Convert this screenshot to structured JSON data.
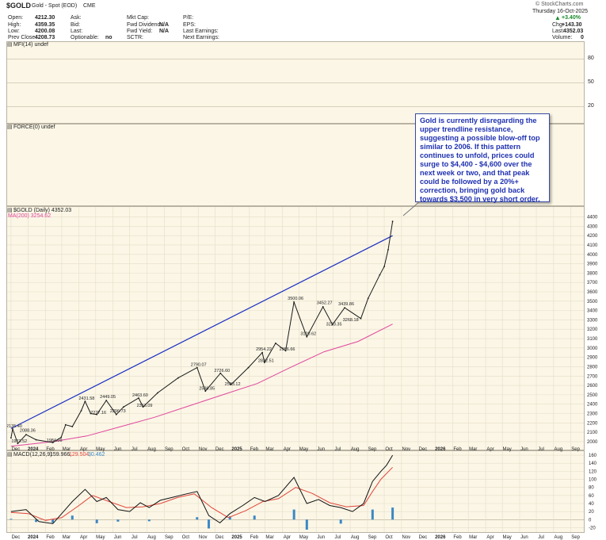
{
  "header": {
    "symbol": "$GOLD",
    "name": "Gold - Spot (EOD)",
    "exchange": "CME",
    "watermark": "© StockCharts.com",
    "date": "Thursday 16-Oct-2025"
  },
  "quote": {
    "open_label": "Open:",
    "open": "4212.30",
    "high_label": "High:",
    "high": "4359.35",
    "low_label": "Low:",
    "low": "4200.08",
    "prev_label": "Prev Close:",
    "prev": "4208.73",
    "ask_label": "Ask:",
    "bid_label": "Bid:",
    "last_label": "Last:",
    "optionable_label": "Optionable:",
    "optionable": "no",
    "mktcap_label": "Mkt Cap:",
    "fwddiv_label": "Fwd Dividend:",
    "fwddiv": "N/A",
    "fwdyield_label": "Fwd Yield:",
    "fwdyield": "N/A",
    "sctr_label": "SCTR:",
    "pe_label": "P/E:",
    "eps_label": "EPS:",
    "lastearn_label": "Last Earnings:",
    "nextearn_label": "Next Earnings:",
    "change_pct": "+3.40%",
    "chg_label": "Chg:",
    "chg": "+143.30",
    "last2_label": "Last:",
    "last2": "4352.03",
    "volume_label": "Volume:",
    "volume": "0"
  },
  "panels": {
    "mfi_legend": "MFI(14) undef",
    "force_legend": "FORCE(0) undef",
    "price_legend": "$GOLD (Daily) 4352.03",
    "ma_legend": "MA(200) 3254.62",
    "macd_legend_name": "MACD(12,26,9)",
    "macd_legend_v1": "159.966,",
    "macd_legend_v2": "129.504,",
    "macd_legend_v3": "30.462"
  },
  "mfi_axis": [
    "80",
    "50",
    "20"
  ],
  "annotation": "Gold is currently disregarding the upper trendline resistance, suggesting a possible blow-off top similar to 2006. If this pattern continues to unfold, prices could surge to $4,400 - $4,600 over the next week or two, and that peak could be followed by a 20%+ correction, bringing gold back towards $3,500 in very short order.",
  "colors": {
    "price": "#1a1a1a",
    "ma": "#e0459d",
    "trendline": "#1c2fc4",
    "macd": "#111111",
    "signal": "#e0453a",
    "histogram": "#3c88c4",
    "panel_bg": "#fbf6e6",
    "annotation_text": "#1f31b0",
    "up": "#1a8a2a"
  },
  "chart_data": [
    {
      "type": "line",
      "title": "$GOLD (Daily) 4352.03",
      "x_labels": [
        "Dec",
        "2024",
        "Feb",
        "Mar",
        "Apr",
        "May",
        "Jun",
        "Jul",
        "Aug",
        "Sep",
        "Oct",
        "Nov",
        "Dec",
        "2025",
        "Feb",
        "Mar",
        "Apr",
        "May",
        "Jun",
        "Jul",
        "Aug",
        "Sep",
        "Oct",
        "Nov",
        "Dec",
        "2026",
        "Feb",
        "Mar",
        "Apr",
        "May",
        "Jun",
        "Jul",
        "Aug",
        "Sep"
      ],
      "y_ticks": [
        2000,
        2100,
        2200,
        2300,
        2400,
        2500,
        2600,
        2700,
        2800,
        2900,
        3000,
        3100,
        3200,
        3300,
        3400,
        3500,
        3600,
        3700,
        3800,
        3900,
        4000,
        4100,
        4200,
        4300,
        4400
      ],
      "ylim": [
        1940,
        4430
      ],
      "series": [
        {
          "name": "$GOLD",
          "x": [
            "2023-12-01",
            "2023-12-04",
            "2023-12-13",
            "2023-12-28",
            "2024-01-15",
            "2024-02-14",
            "2024-02-29",
            "2024-03-08",
            "2024-03-20",
            "2024-04-05",
            "2024-04-12",
            "2024-04-22",
            "2024-05-03",
            "2024-05-20",
            "2024-06-07",
            "2024-06-20",
            "2024-07-17",
            "2024-07-25",
            "2024-08-20",
            "2024-09-26",
            "2024-10-30",
            "2024-11-14",
            "2024-12-11",
            "2024-12-30",
            "2025-01-30",
            "2025-02-24",
            "2025-02-28",
            "2025-03-20",
            "2025-04-07",
            "2025-04-22",
            "2025-05-15",
            "2025-06-13",
            "2025-06-30",
            "2025-07-22",
            "2025-08-20",
            "2025-09-02",
            "2025-09-23",
            "2025-10-01",
            "2025-10-08",
            "2025-10-16"
          ],
          "y": [
            2040,
            2135,
            1980,
            2075,
            2020,
            1990,
            2045,
            2180,
            2160,
            2330,
            2430,
            2300,
            2290,
            2440,
            2290,
            2370,
            2465,
            2370,
            2520,
            2680,
            2790,
            2540,
            2730,
            2610,
            2790,
            2950,
            2845,
            3050,
            2970,
            3490,
            3120,
            3440,
            3250,
            3430,
            3315,
            3530,
            3780,
            3870,
            4050,
            4352
          ]
        },
        {
          "name": "MA(200)",
          "x": [
            "2023-12-01",
            "2024-02-15",
            "2024-04-15",
            "2024-06-15",
            "2024-08-15",
            "2024-10-15",
            "2024-12-15",
            "2025-02-15",
            "2025-04-15",
            "2025-06-15",
            "2025-08-15",
            "2025-10-16"
          ],
          "y": [
            1950,
            2000,
            2060,
            2160,
            2260,
            2380,
            2500,
            2620,
            2790,
            2960,
            3070,
            3255
          ]
        },
        {
          "name": "Trendline",
          "x": [
            "2023-12-01",
            "2025-10-16"
          ],
          "y": [
            2140,
            4200
          ]
        }
      ],
      "annotations": [
        {
          "x": "2023-12-04",
          "y": 2135.4,
          "text": "2135.40"
        },
        {
          "x": "2023-12-13",
          "y": 1973.52,
          "text": "1973.52"
        },
        {
          "x": "2023-12-28",
          "y": 2088.36,
          "text": "2088.36"
        },
        {
          "x": "2024-02-14",
          "y": 1984.09,
          "text": "1984.09"
        },
        {
          "x": "2024-04-12",
          "y": 2431.58,
          "text": "2431.58"
        },
        {
          "x": "2024-05-03",
          "y": 2277.16,
          "text": "2277.16"
        },
        {
          "x": "2024-05-20",
          "y": 2449.05,
          "text": "2449.05"
        },
        {
          "x": "2024-06-07",
          "y": 2296.73,
          "text": "2296.73"
        },
        {
          "x": "2024-07-17",
          "y": 2463.6,
          "text": "2463.60"
        },
        {
          "x": "2024-07-25",
          "y": 2353.09,
          "text": "2353.09"
        },
        {
          "x": "2024-10-30",
          "y": 2790.07,
          "text": "2790.07"
        },
        {
          "x": "2024-11-14",
          "y": 2536.85,
          "text": "2536.85"
        },
        {
          "x": "2024-12-11",
          "y": 2726.6,
          "text": "2726.60"
        },
        {
          "x": "2024-12-30",
          "y": 2583.12,
          "text": "2583.12"
        },
        {
          "x": "2025-02-24",
          "y": 2954.22,
          "text": "2954.22"
        },
        {
          "x": "2025-02-28",
          "y": 2832.51,
          "text": "2832.51"
        },
        {
          "x": "2025-04-07",
          "y": 2956.66,
          "text": "2956.66"
        },
        {
          "x": "2025-04-22",
          "y": 3500.06,
          "text": "3500.06"
        },
        {
          "x": "2025-05-15",
          "y": 3120.62,
          "text": "3120.62"
        },
        {
          "x": "2025-06-13",
          "y": 3452.27,
          "text": "3452.27"
        },
        {
          "x": "2025-06-30",
          "y": 3223.35,
          "text": "3223.35"
        },
        {
          "x": "2025-07-22",
          "y": 3439.86,
          "text": "3439.86"
        },
        {
          "x": "2025-07-30",
          "y": 3268.18,
          "text": "3268.18"
        }
      ]
    },
    {
      "type": "line",
      "title": "MACD(12,26,9)",
      "x_labels": [
        "Dec",
        "2024",
        "Feb",
        "Mar",
        "Apr",
        "May",
        "Jun",
        "Jul",
        "Aug",
        "Sep",
        "Oct",
        "Nov",
        "Dec",
        "2025",
        "Feb",
        "Mar",
        "Apr",
        "May",
        "Jun",
        "Jul",
        "Aug",
        "Sep",
        "Oct",
        "Nov",
        "Dec",
        "2026",
        "Feb",
        "Mar",
        "Apr",
        "May",
        "Jun",
        "Jul",
        "Aug",
        "Sep"
      ],
      "y_ticks": [
        -20,
        0,
        20,
        40,
        60,
        80,
        100,
        120,
        140,
        160
      ],
      "ylim": [
        -27,
        170
      ],
      "series": [
        {
          "name": "MACD",
          "x": [
            "2023-12-01",
            "2023-12-28",
            "2024-01-20",
            "2024-02-14",
            "2024-03-01",
            "2024-03-20",
            "2024-04-12",
            "2024-05-03",
            "2024-05-20",
            "2024-06-10",
            "2024-07-01",
            "2024-07-20",
            "2024-08-05",
            "2024-08-25",
            "2024-09-15",
            "2024-10-05",
            "2024-10-30",
            "2024-11-20",
            "2024-12-10",
            "2024-12-28",
            "2025-01-20",
            "2025-02-10",
            "2025-03-01",
            "2025-03-25",
            "2025-04-22",
            "2025-05-15",
            "2025-06-05",
            "2025-06-25",
            "2025-07-15",
            "2025-08-05",
            "2025-08-25",
            "2025-09-10",
            "2025-09-25",
            "2025-10-05",
            "2025-10-16"
          ],
          "y": [
            20,
            25,
            -5,
            -10,
            15,
            45,
            75,
            45,
            55,
            25,
            20,
            42,
            30,
            48,
            55,
            62,
            70,
            10,
            -8,
            15,
            35,
            55,
            45,
            60,
            105,
            40,
            50,
            35,
            30,
            20,
            40,
            95,
            120,
            135,
            160
          ]
        },
        {
          "name": "Signal",
          "x": [
            "2023-12-01",
            "2024-01-01",
            "2024-02-01",
            "2024-03-01",
            "2024-04-01",
            "2024-04-25",
            "2024-05-25",
            "2024-06-25",
            "2024-07-25",
            "2024-08-25",
            "2024-09-25",
            "2024-10-25",
            "2024-11-25",
            "2024-12-25",
            "2025-01-25",
            "2025-02-25",
            "2025-03-25",
            "2025-04-25",
            "2025-05-25",
            "2025-06-25",
            "2025-07-25",
            "2025-08-25",
            "2025-09-10",
            "2025-09-25",
            "2025-10-16"
          ],
          "y": [
            18,
            15,
            -2,
            5,
            35,
            60,
            45,
            30,
            32,
            40,
            55,
            64,
            30,
            5,
            22,
            45,
            52,
            80,
            65,
            42,
            32,
            35,
            70,
            100,
            130
          ]
        },
        {
          "name": "Histogram",
          "x": [
            "2023-12-01",
            "2024-01-15",
            "2024-02-14",
            "2024-03-20",
            "2024-05-03",
            "2024-06-10",
            "2024-08-05",
            "2024-10-30",
            "2024-11-20",
            "2024-12-28",
            "2025-02-10",
            "2025-04-22",
            "2025-05-15",
            "2025-07-15",
            "2025-09-10",
            "2025-10-16"
          ],
          "y": [
            2,
            -6,
            -8,
            10,
            -9,
            -5,
            -4,
            6,
            -22,
            8,
            10,
            25,
            -25,
            -10,
            25,
            30
          ]
        }
      ]
    },
    {
      "type": "line",
      "title": "MFI(14) undef",
      "y_ticks": [
        80,
        50,
        20
      ],
      "series": []
    },
    {
      "type": "line",
      "title": "FORCE(0) undef",
      "series": []
    }
  ]
}
